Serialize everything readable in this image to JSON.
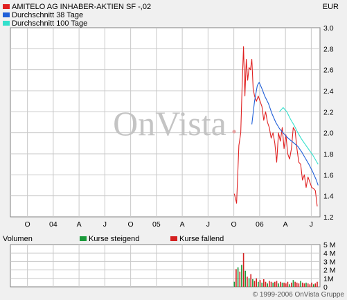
{
  "currency": "EUR",
  "watermark": "OnVista",
  "copyright": "© 1999-2006 OnVista Gruppe",
  "colors": {
    "price": "#e02020",
    "avg38": "#1f5fd8",
    "avg100": "#33e0cc",
    "vol_up": "#1a9a3a",
    "vol_down": "#d42020",
    "grid": "#c8c8c8",
    "plot_bg": "#ffffff"
  },
  "legend": [
    {
      "label": "AMITELO AG INHABER-AKTIEN SF -,02",
      "color": "#e02020"
    },
    {
      "label": "Durchschnitt 38 Tage",
      "color": "#1f5fd8"
    },
    {
      "label": "Durchschnitt 100 Tage",
      "color": "#33e0cc"
    }
  ],
  "chart_data": {
    "type": "line",
    "x_ticks": [
      "O",
      "04",
      "A",
      "J",
      "O",
      "05",
      "A",
      "J",
      "O",
      "06",
      "A",
      "J"
    ],
    "y_ticks": [
      "3.0",
      "2.8",
      "2.6",
      "2.4",
      "2.2",
      "2.0",
      "1.8",
      "1.6",
      "1.4",
      "1.2"
    ],
    "ylim": [
      1.2,
      3.0
    ],
    "x_unit": "months since Sep 2003",
    "xlim": [
      0,
      33.6
    ],
    "grid": true,
    "series": [
      {
        "name": "AMITELO AG INHABER-AKTIEN SF -,02",
        "color": "#e02020",
        "points": [
          [
            24.3,
            1.42
          ],
          [
            24.55,
            1.33
          ],
          [
            24.8,
            1.88
          ],
          [
            25.0,
            2.0
          ],
          [
            25.15,
            2.45
          ],
          [
            25.3,
            2.82
          ],
          [
            25.45,
            2.35
          ],
          [
            25.6,
            2.7
          ],
          [
            25.75,
            2.5
          ],
          [
            25.9,
            2.62
          ],
          [
            26.05,
            2.6
          ],
          [
            26.2,
            2.7
          ],
          [
            26.35,
            2.42
          ],
          [
            26.5,
            2.35
          ],
          [
            26.7,
            2.3
          ],
          [
            26.9,
            2.35
          ],
          [
            27.1,
            2.3
          ],
          [
            27.3,
            2.25
          ],
          [
            27.5,
            2.12
          ],
          [
            27.7,
            2.2
          ],
          [
            27.9,
            2.1
          ],
          [
            28.1,
            2.05
          ],
          [
            28.3,
            1.95
          ],
          [
            28.5,
            2.0
          ],
          [
            28.7,
            1.9
          ],
          [
            28.9,
            1.72
          ],
          [
            29.1,
            2.0
          ],
          [
            29.3,
            1.92
          ],
          [
            29.5,
            2.05
          ],
          [
            29.7,
            1.85
          ],
          [
            29.9,
            1.98
          ],
          [
            30.1,
            1.8
          ],
          [
            30.3,
            1.75
          ],
          [
            30.5,
            1.85
          ],
          [
            30.7,
            2.05
          ],
          [
            30.9,
            2.02
          ],
          [
            31.1,
            1.85
          ],
          [
            31.3,
            1.72
          ],
          [
            31.5,
            1.7
          ],
          [
            31.7,
            1.55
          ],
          [
            31.9,
            1.6
          ],
          [
            32.1,
            1.48
          ],
          [
            32.3,
            1.58
          ],
          [
            32.5,
            1.53
          ],
          [
            32.7,
            1.48
          ],
          [
            32.9,
            1.47
          ],
          [
            33.1,
            1.45
          ],
          [
            33.3,
            1.3
          ]
        ]
      },
      {
        "name": "Durchschnitt 38 Tage",
        "color": "#1f5fd8",
        "points": [
          [
            26.2,
            2.08
          ],
          [
            26.5,
            2.3
          ],
          [
            26.8,
            2.45
          ],
          [
            27.0,
            2.48
          ],
          [
            27.3,
            2.42
          ],
          [
            27.6,
            2.35
          ],
          [
            28.0,
            2.28
          ],
          [
            28.4,
            2.18
          ],
          [
            28.8,
            2.1
          ],
          [
            29.2,
            2.04
          ],
          [
            29.6,
            2.0
          ],
          [
            30.0,
            1.96
          ],
          [
            30.4,
            1.93
          ],
          [
            30.8,
            1.9
          ],
          [
            31.2,
            1.87
          ],
          [
            31.6,
            1.82
          ],
          [
            32.0,
            1.76
          ],
          [
            32.4,
            1.7
          ],
          [
            32.8,
            1.63
          ],
          [
            33.2,
            1.55
          ],
          [
            33.4,
            1.5
          ]
        ]
      },
      {
        "name": "Durchschnitt 100 Tage",
        "color": "#33e0cc",
        "points": [
          [
            29.2,
            2.2
          ],
          [
            29.6,
            2.24
          ],
          [
            30.0,
            2.2
          ],
          [
            30.4,
            2.13
          ],
          [
            30.8,
            2.07
          ],
          [
            31.2,
            2.0
          ],
          [
            31.6,
            1.94
          ],
          [
            32.0,
            1.89
          ],
          [
            32.4,
            1.84
          ],
          [
            32.8,
            1.79
          ],
          [
            33.2,
            1.73
          ],
          [
            33.4,
            1.7
          ]
        ]
      }
    ],
    "volume": {
      "title": "Volumen",
      "legend": [
        {
          "label": "Kurse steigend",
          "color": "#1a9a3a"
        },
        {
          "label": "Kurse fallend",
          "color": "#d42020"
        }
      ],
      "y_ticks": [
        "5 M",
        "4 M",
        "3 M",
        "2 M",
        "1M",
        "0"
      ],
      "ylim": [
        0,
        5
      ],
      "bars": [
        [
          24.3,
          0.6,
          "up"
        ],
        [
          24.5,
          2.1,
          "down"
        ],
        [
          24.7,
          2.3,
          "up"
        ],
        [
          24.9,
          1.8,
          "down"
        ],
        [
          25.1,
          2.6,
          "up"
        ],
        [
          25.3,
          4.0,
          "down"
        ],
        [
          25.5,
          1.9,
          "up"
        ],
        [
          25.7,
          1.2,
          "down"
        ],
        [
          25.9,
          1.0,
          "up"
        ],
        [
          26.1,
          1.5,
          "down"
        ],
        [
          26.3,
          0.9,
          "up"
        ],
        [
          26.5,
          0.7,
          "down"
        ],
        [
          26.7,
          1.0,
          "down"
        ],
        [
          26.9,
          0.6,
          "up"
        ],
        [
          27.1,
          0.8,
          "down"
        ],
        [
          27.3,
          0.5,
          "up"
        ],
        [
          27.5,
          0.9,
          "down"
        ],
        [
          27.7,
          0.6,
          "down"
        ],
        [
          27.9,
          0.4,
          "up"
        ],
        [
          28.1,
          0.7,
          "down"
        ],
        [
          28.3,
          0.6,
          "down"
        ],
        [
          28.5,
          0.5,
          "up"
        ],
        [
          28.7,
          0.6,
          "down"
        ],
        [
          28.9,
          0.7,
          "down"
        ],
        [
          29.1,
          0.4,
          "up"
        ],
        [
          29.3,
          0.6,
          "down"
        ],
        [
          29.5,
          0.5,
          "up"
        ],
        [
          29.7,
          0.5,
          "down"
        ],
        [
          29.9,
          0.4,
          "down"
        ],
        [
          30.1,
          0.6,
          "down"
        ],
        [
          30.3,
          0.3,
          "up"
        ],
        [
          30.5,
          0.5,
          "down"
        ],
        [
          30.7,
          0.8,
          "up"
        ],
        [
          30.9,
          0.6,
          "down"
        ],
        [
          31.1,
          0.5,
          "down"
        ],
        [
          31.3,
          0.4,
          "down"
        ],
        [
          31.5,
          0.7,
          "up"
        ],
        [
          31.7,
          0.5,
          "down"
        ],
        [
          31.9,
          0.4,
          "down"
        ],
        [
          32.1,
          0.5,
          "up"
        ],
        [
          32.3,
          0.4,
          "down"
        ],
        [
          32.5,
          0.3,
          "down"
        ],
        [
          32.7,
          0.5,
          "down"
        ],
        [
          32.9,
          0.3,
          "up"
        ],
        [
          33.1,
          0.4,
          "down"
        ],
        [
          33.3,
          0.6,
          "down"
        ]
      ]
    }
  }
}
